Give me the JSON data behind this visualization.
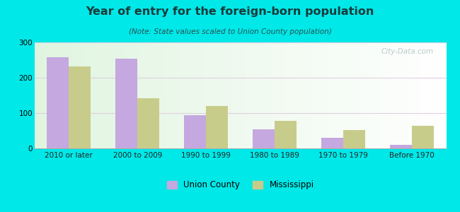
{
  "title": "Year of entry for the foreign-born population",
  "subtitle": "(Note: State values scaled to Union County population)",
  "categories": [
    "2010 or later",
    "2000 to 2009",
    "1990 to 1999",
    "1980 to 1989",
    "1970 to 1979",
    "Before 1970"
  ],
  "union_county": [
    258,
    255,
    95,
    55,
    30,
    10
  ],
  "mississippi": [
    233,
    143,
    120,
    78,
    53,
    65
  ],
  "union_color": "#c4a8df",
  "mississippi_color": "#c8cc8a",
  "background_color": "#00e8e8",
  "ylim": [
    0,
    300
  ],
  "yticks": [
    0,
    100,
    200,
    300
  ],
  "legend_labels": [
    "Union County",
    "Mississippi"
  ],
  "watermark": "City-Data.com",
  "title_color": "#1a3a3a",
  "subtitle_color": "#2a5050"
}
